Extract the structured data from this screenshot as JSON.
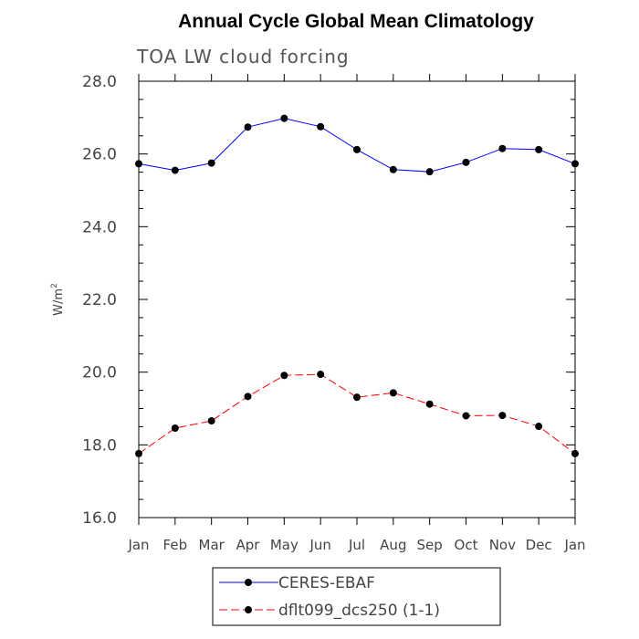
{
  "chart_data": {
    "type": "line",
    "title": "Annual Cycle Global Mean Climatology",
    "subtitle": "TOA LW cloud forcing",
    "xlabel": "",
    "ylabel": "W/m",
    "ylabel_superscript": "2",
    "categories": [
      "Jan",
      "Feb",
      "Mar",
      "Apr",
      "May",
      "Jun",
      "Jul",
      "Aug",
      "Sep",
      "Oct",
      "Nov",
      "Dec",
      "Jan"
    ],
    "ylim": [
      16.0,
      28.0
    ],
    "yticks": [
      "16.0",
      "18.0",
      "20.0",
      "22.0",
      "24.0",
      "26.0",
      "28.0"
    ],
    "grid": false,
    "legend_position": "bottom",
    "series": [
      {
        "name": "CERES-EBAF",
        "color": "#0000ff",
        "dash": "solid",
        "values": [
          25.73,
          25.55,
          25.75,
          26.74,
          26.98,
          26.75,
          26.12,
          25.57,
          25.51,
          25.77,
          26.15,
          26.12,
          25.73
        ]
      },
      {
        "name": "dflt099_dcs250 (1-1)",
        "color": "#ff0000",
        "dash": "dashed",
        "values": [
          17.76,
          18.46,
          18.66,
          19.33,
          19.91,
          19.94,
          19.31,
          19.43,
          19.12,
          18.8,
          18.81,
          18.51,
          17.76
        ]
      }
    ]
  }
}
